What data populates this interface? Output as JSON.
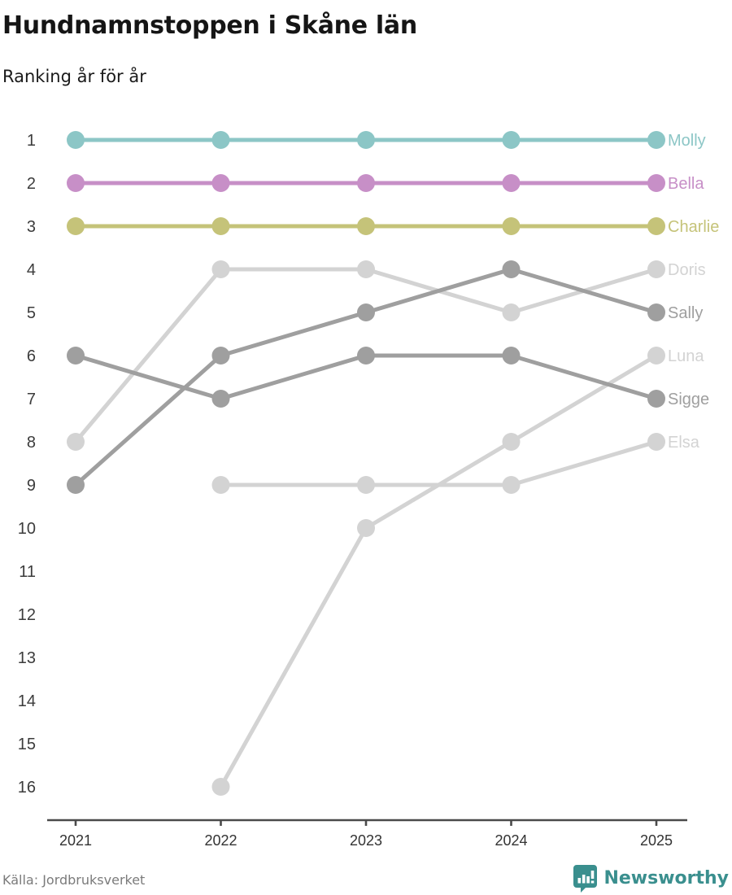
{
  "header": {
    "title": "Hundnamnstoppen i Skåne län",
    "subtitle": "Ranking år för år"
  },
  "chart_data": {
    "type": "line",
    "variant": "bump-ranking",
    "title": "Hundnamnstoppen i Skåne län",
    "subtitle": "Ranking år för år",
    "x": [
      2021,
      2022,
      2023,
      2024,
      2025
    ],
    "y_ticks": [
      1,
      2,
      3,
      4,
      5,
      6,
      7,
      8,
      9,
      10,
      11,
      12,
      13,
      14,
      15,
      16
    ],
    "ylim": [
      1,
      16
    ],
    "y_inverted": true,
    "grid": false,
    "legend_position": "right-end-labels",
    "axis_color": "#4a4a4a",
    "tick_label_color": "#333333",
    "rank_label_color": "#3c3c3c",
    "series": [
      {
        "name": "Molly",
        "color": "#8cc6c6",
        "z": 3,
        "values": [
          1,
          1,
          1,
          1,
          1
        ]
      },
      {
        "name": "Bella",
        "color": "#c78fc7",
        "z": 3,
        "values": [
          2,
          2,
          2,
          2,
          2
        ]
      },
      {
        "name": "Charlie",
        "color": "#c5c379",
        "z": 3,
        "values": [
          3,
          3,
          3,
          3,
          3
        ]
      },
      {
        "name": "Doris",
        "color": "#d3d3d3",
        "z": 1,
        "values": [
          8,
          4,
          4,
          5,
          4
        ]
      },
      {
        "name": "Sally",
        "color": "#9f9f9f",
        "z": 2,
        "values": [
          9,
          6,
          5,
          4,
          5
        ]
      },
      {
        "name": "Luna",
        "color": "#d3d3d3",
        "z": 1,
        "values": [
          null,
          16,
          10,
          8,
          6
        ]
      },
      {
        "name": "Sigge",
        "color": "#9f9f9f",
        "z": 2,
        "values": [
          6,
          7,
          6,
          6,
          7
        ]
      },
      {
        "name": "Elsa",
        "color": "#d3d3d3",
        "z": 1,
        "values": [
          null,
          9,
          9,
          9,
          8
        ]
      }
    ]
  },
  "footer": {
    "source": "Källa: Jordbruksverket",
    "brand": "Newsworthy",
    "logo_icon": "newsworthy-bars-icon",
    "brand_color": "#3a8f8e"
  }
}
